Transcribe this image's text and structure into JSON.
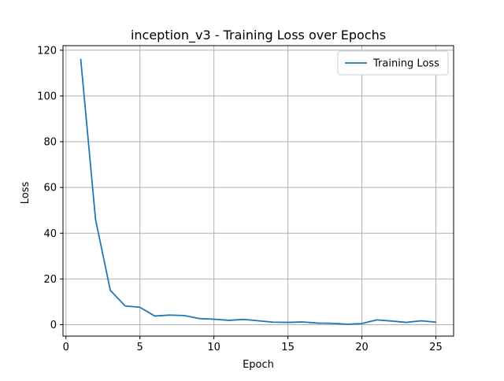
{
  "chart_data": {
    "type": "line",
    "title": "inception_v3 - Training Loss over Epochs",
    "xlabel": "Epoch",
    "ylabel": "Loss",
    "xlim": [
      -0.2,
      26.2
    ],
    "ylim": [
      -5,
      122
    ],
    "xticks": [
      0,
      5,
      10,
      15,
      20,
      25
    ],
    "yticks": [
      0,
      20,
      40,
      60,
      80,
      100,
      120
    ],
    "grid": true,
    "legend_position": "top-right",
    "series": [
      {
        "name": "Training Loss",
        "color": "#1f77b4",
        "x": [
          1,
          2,
          3,
          4,
          5,
          6,
          7,
          8,
          9,
          10,
          11,
          12,
          13,
          14,
          15,
          16,
          17,
          18,
          19,
          20,
          21,
          22,
          23,
          24,
          25
        ],
        "y": [
          116,
          46,
          15,
          8.2,
          7.6,
          3.8,
          4.2,
          4.0,
          2.7,
          2.4,
          1.9,
          2.3,
          1.7,
          1.1,
          1.0,
          1.2,
          0.7,
          0.6,
          0.2,
          0.5,
          2.1,
          1.6,
          1.0,
          1.7,
          1.1
        ]
      }
    ]
  }
}
